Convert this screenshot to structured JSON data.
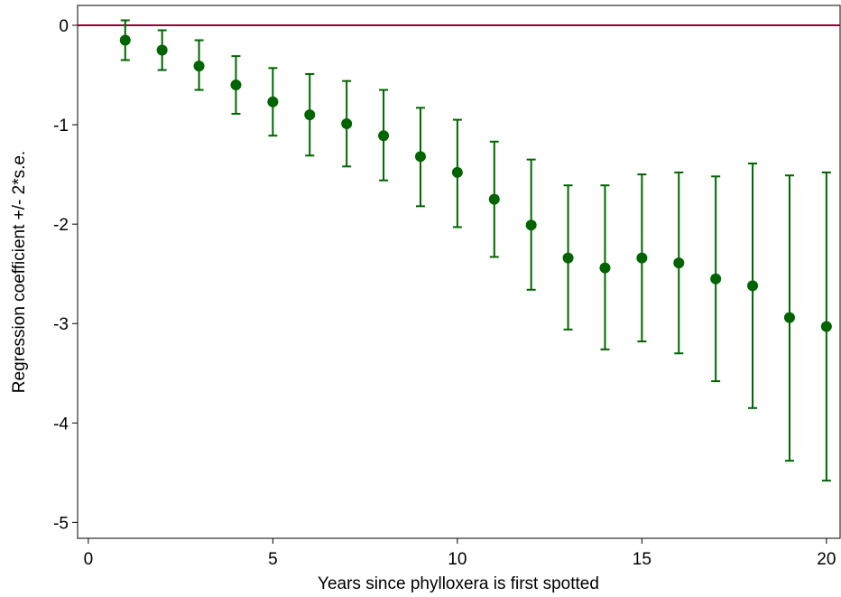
{
  "chart_data": {
    "type": "errorbar",
    "xlabel": "Years since phylloxera is first spotted",
    "ylabel": "Regression coefficient +/- 2*s.e.",
    "x": [
      1,
      2,
      3,
      4,
      5,
      6,
      7,
      8,
      9,
      10,
      11,
      12,
      13,
      14,
      15,
      16,
      17,
      18,
      19,
      20
    ],
    "values": [
      -0.15,
      -0.25,
      -0.41,
      -0.6,
      -0.77,
      -0.9,
      -0.99,
      -1.11,
      -1.32,
      -1.48,
      -1.75,
      -2.01,
      -2.34,
      -2.44,
      -2.34,
      -2.39,
      -2.55,
      -2.62,
      -2.94,
      -3.03
    ],
    "lower": [
      -0.35,
      -0.45,
      -0.65,
      -0.89,
      -1.11,
      -1.31,
      -1.42,
      -1.56,
      -1.82,
      -2.03,
      -2.33,
      -2.66,
      -3.06,
      -3.26,
      -3.18,
      -3.3,
      -3.58,
      -3.85,
      -4.38,
      -4.58
    ],
    "upper": [
      0.05,
      -0.05,
      -0.15,
      -0.31,
      -0.43,
      -0.49,
      -0.56,
      -0.65,
      -0.83,
      -0.95,
      -1.17,
      -1.35,
      -1.61,
      -1.61,
      -1.5,
      -1.48,
      -1.52,
      -1.39,
      -1.51,
      -1.48
    ],
    "color": "#006400",
    "reference_line": 0,
    "reference_color": "#990033",
    "xlim": [
      -0.29,
      20.37
    ],
    "ylim": [
      -5.16,
      0.2
    ],
    "xticks": [
      0,
      5,
      10,
      15,
      20
    ],
    "yticks": [
      0,
      -1,
      -2,
      -3,
      -4,
      -5
    ]
  }
}
